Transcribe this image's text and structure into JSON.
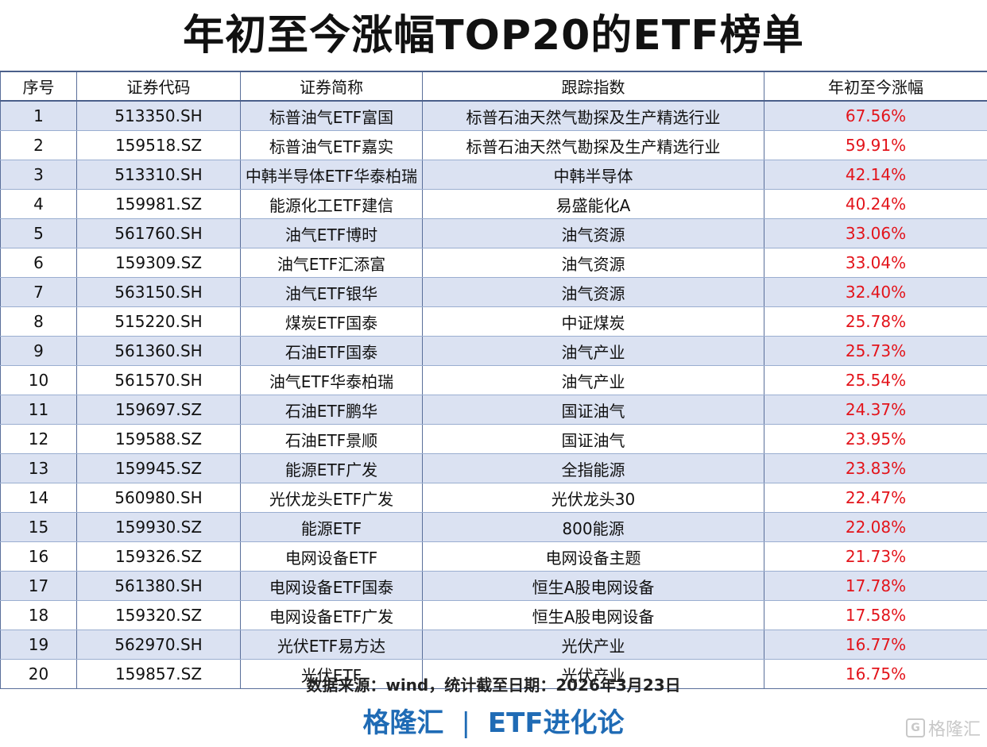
{
  "title": "年初至今涨幅TOP20的ETF榜单",
  "table": {
    "headers": [
      "序号",
      "证券代码",
      "证券简称",
      "跟踪指数",
      "年初至今涨幅"
    ],
    "rows": [
      {
        "no": "1",
        "code": "513350.SH",
        "name": "标普油气ETF富国",
        "index": "标普石油天然气勘探及生产精选行业",
        "gain": "67.56%"
      },
      {
        "no": "2",
        "code": "159518.SZ",
        "name": "标普油气ETF嘉实",
        "index": "标普石油天然气勘探及生产精选行业",
        "gain": "59.91%"
      },
      {
        "no": "3",
        "code": "513310.SH",
        "name": "中韩半导体ETF华泰柏瑞",
        "index": "中韩半导体",
        "gain": "42.14%"
      },
      {
        "no": "4",
        "code": "159981.SZ",
        "name": "能源化工ETF建信",
        "index": "易盛能化A",
        "gain": "40.24%"
      },
      {
        "no": "5",
        "code": "561760.SH",
        "name": "油气ETF博时",
        "index": "油气资源",
        "gain": "33.06%"
      },
      {
        "no": "6",
        "code": "159309.SZ",
        "name": "油气ETF汇添富",
        "index": "油气资源",
        "gain": "33.04%"
      },
      {
        "no": "7",
        "code": "563150.SH",
        "name": "油气ETF银华",
        "index": "油气资源",
        "gain": "32.40%"
      },
      {
        "no": "8",
        "code": "515220.SH",
        "name": "煤炭ETF国泰",
        "index": "中证煤炭",
        "gain": "25.78%"
      },
      {
        "no": "9",
        "code": "561360.SH",
        "name": "石油ETF国泰",
        "index": "油气产业",
        "gain": "25.73%"
      },
      {
        "no": "10",
        "code": "561570.SH",
        "name": "油气ETF华泰柏瑞",
        "index": "油气产业",
        "gain": "25.54%"
      },
      {
        "no": "11",
        "code": "159697.SZ",
        "name": "石油ETF鹏华",
        "index": "国证油气",
        "gain": "24.37%"
      },
      {
        "no": "12",
        "code": "159588.SZ",
        "name": "石油ETF景顺",
        "index": "国证油气",
        "gain": "23.95%"
      },
      {
        "no": "13",
        "code": "159945.SZ",
        "name": "能源ETF广发",
        "index": "全指能源",
        "gain": "23.83%"
      },
      {
        "no": "14",
        "code": "560980.SH",
        "name": "光伏龙头ETF广发",
        "index": "光伏龙头30",
        "gain": "22.47%"
      },
      {
        "no": "15",
        "code": "159930.SZ",
        "name": "能源ETF",
        "index": "800能源",
        "gain": "22.08%"
      },
      {
        "no": "16",
        "code": "159326.SZ",
        "name": "电网设备ETF",
        "index": "电网设备主题",
        "gain": "21.73%"
      },
      {
        "no": "17",
        "code": "561380.SH",
        "name": "电网设备ETF国泰",
        "index": "恒生A股电网设备",
        "gain": "17.78%"
      },
      {
        "no": "18",
        "code": "159320.SZ",
        "name": "电网设备ETF广发",
        "index": "恒生A股电网设备",
        "gain": "17.58%"
      },
      {
        "no": "19",
        "code": "562970.SH",
        "name": "光伏ETF易方达",
        "index": "光伏产业",
        "gain": "16.77%"
      },
      {
        "no": "20",
        "code": "159857.SZ",
        "name": "光伏ETF",
        "index": "光伏产业",
        "gain": "16.75%"
      }
    ]
  },
  "source_note": "数据来源：wind，统计截至日期：2026年3月23日",
  "brand": {
    "left": "格隆汇",
    "separator": "|",
    "right": "ETF进化论"
  },
  "watermark": {
    "logo_glyph": "G",
    "text": "格隆汇"
  },
  "colors": {
    "gain_text": "#e3141b",
    "row_stripe": "#dbe2f2",
    "brand_blue": "#1f6bb5"
  }
}
